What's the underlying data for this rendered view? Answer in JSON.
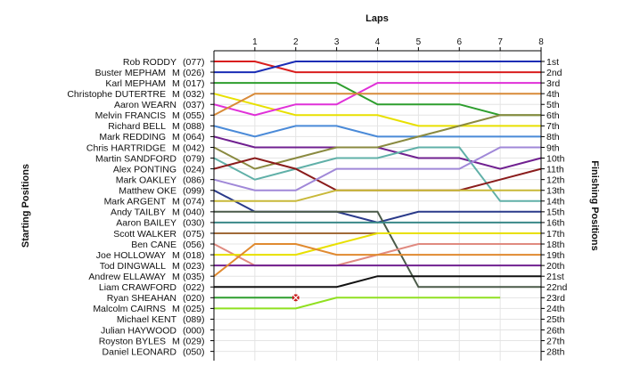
{
  "chart_data": {
    "type": "line",
    "title": "",
    "xlabel": "Laps",
    "ylabel_left": "Starting Positions",
    "ylabel_right": "Finishing Positions",
    "x_ticks": [
      "1",
      "2",
      "3",
      "4",
      "5",
      "6",
      "7",
      "8"
    ],
    "position_labels": [
      "1st",
      "2nd",
      "3rd",
      "4th",
      "5th",
      "6th",
      "7th",
      "8th",
      "9th",
      "10th",
      "11th",
      "12th",
      "13th",
      "14th",
      "15th",
      "16th",
      "17th",
      "18th",
      "19th",
      "20th",
      "21st",
      "22nd",
      "23rd",
      "24th",
      "25th",
      "26th",
      "27th",
      "28th"
    ],
    "grid": true,
    "drivers": [
      {
        "name": "Rob RODDY",
        "cls": "",
        "num": "(077)"
      },
      {
        "name": "Buster MEPHAM",
        "cls": "M",
        "num": "(026)"
      },
      {
        "name": "Karl MEPHAM",
        "cls": "M",
        "num": "(017)"
      },
      {
        "name": "Christophe DUTERTRE",
        "cls": "M",
        "num": "(032)"
      },
      {
        "name": "Aaron WEARN",
        "cls": "",
        "num": "(037)"
      },
      {
        "name": "Melvin FRANCIS",
        "cls": "M",
        "num": "(055)"
      },
      {
        "name": "Richard BELL",
        "cls": "M",
        "num": "(088)"
      },
      {
        "name": "Mark REDDING",
        "cls": "M",
        "num": "(064)"
      },
      {
        "name": "Chris HARTRIDGE",
        "cls": "M",
        "num": "(042)"
      },
      {
        "name": "Martin SANDFORD",
        "cls": "",
        "num": "(079)"
      },
      {
        "name": "Alex PONTING",
        "cls": "",
        "num": "(024)"
      },
      {
        "name": "Mark OAKLEY",
        "cls": "",
        "num": "(086)"
      },
      {
        "name": "Matthew OKE",
        "cls": "",
        "num": "(099)"
      },
      {
        "name": "Mark ARGENT",
        "cls": "M",
        "num": "(074)"
      },
      {
        "name": "Andy TAILBY",
        "cls": "M",
        "num": "(040)"
      },
      {
        "name": "Aaron BAILEY",
        "cls": "",
        "num": "(030)"
      },
      {
        "name": "Scott WALKER",
        "cls": "",
        "num": "(075)"
      },
      {
        "name": "Ben CANE",
        "cls": "",
        "num": "(056)"
      },
      {
        "name": "Joe HOLLOWAY",
        "cls": "M",
        "num": "(018)"
      },
      {
        "name": "Tod DINGWALL",
        "cls": "M",
        "num": "(023)"
      },
      {
        "name": "Andrew ELLAWAY",
        "cls": "M",
        "num": "(035)"
      },
      {
        "name": "Liam CRAWFORD",
        "cls": "",
        "num": "(022)"
      },
      {
        "name": "Ryan SHEAHAN",
        "cls": "",
        "num": "(020)"
      },
      {
        "name": "Malcolm CAIRNS",
        "cls": "M",
        "num": "(025)"
      },
      {
        "name": "Michael KENT",
        "cls": "",
        "num": "(089)"
      },
      {
        "name": "Julian HAYWOOD",
        "cls": "",
        "num": "(000)"
      },
      {
        "name": "Royston BYLES",
        "cls": "M",
        "num": "(029)"
      },
      {
        "name": "Daniel LEONARD",
        "cls": "",
        "num": "(050)"
      }
    ],
    "series": [
      {
        "start": 1,
        "color": "#d91e1e",
        "positions": [
          1,
          2,
          2,
          2,
          2,
          2,
          2,
          2
        ]
      },
      {
        "start": 2,
        "color": "#1a2db5",
        "positions": [
          2,
          1,
          1,
          1,
          1,
          1,
          1,
          1
        ]
      },
      {
        "start": 3,
        "color": "#2e9e2e",
        "positions": [
          3,
          3,
          3,
          5,
          5,
          5,
          6,
          6
        ]
      },
      {
        "start": 4,
        "color": "#e8e000",
        "positions": [
          5,
          6,
          6,
          6,
          7,
          7,
          7,
          7
        ]
      },
      {
        "start": 5,
        "color": "#e030d8",
        "positions": [
          6,
          5,
          5,
          3,
          3,
          3,
          3,
          3
        ]
      },
      {
        "start": 6,
        "color": "#d88a38",
        "positions": [
          4,
          4,
          4,
          4,
          4,
          4,
          4,
          4
        ]
      },
      {
        "start": 7,
        "color": "#4a8ad8",
        "positions": [
          8,
          7,
          7,
          8,
          8,
          8,
          8,
          8
        ]
      },
      {
        "start": 8,
        "color": "#702090",
        "positions": [
          9,
          9,
          9,
          9,
          10,
          10,
          11,
          10
        ]
      },
      {
        "start": 9,
        "color": "#8a8a40",
        "positions": [
          11,
          10,
          9,
          9,
          8,
          7,
          6,
          6
        ]
      },
      {
        "start": 10,
        "color": "#60b0a8",
        "positions": [
          12,
          11,
          10,
          10,
          9,
          9,
          14,
          14
        ]
      },
      {
        "start": 11,
        "color": "#8a1c1c",
        "positions": [
          10,
          11,
          13,
          13,
          13,
          13,
          12,
          11
        ]
      },
      {
        "start": 12,
        "color": "#a088d8",
        "positions": [
          13,
          13,
          11,
          11,
          11,
          11,
          9,
          9
        ]
      },
      {
        "start": 13,
        "color": "#2a3a8a",
        "positions": [
          15,
          15,
          15,
          16,
          15,
          15,
          15,
          15
        ]
      },
      {
        "start": 14,
        "color": "#c8b838",
        "positions": [
          14,
          14,
          13,
          13,
          13,
          13,
          13,
          13
        ]
      },
      {
        "start": 15,
        "color": "#4a5a48",
        "positions": [
          15,
          15,
          15,
          15,
          22,
          22,
          22,
          22
        ]
      },
      {
        "start": 16,
        "color": "#3a8888",
        "positions": [
          16,
          16,
          16,
          16,
          16,
          16,
          16,
          16
        ]
      },
      {
        "start": 17,
        "color": "#a06a38",
        "positions": [
          17,
          17,
          17,
          17,
          17,
          17,
          17,
          17
        ]
      },
      {
        "start": 18,
        "color": "#e08a80",
        "positions": [
          20,
          20,
          20,
          19,
          18,
          18,
          18,
          18
        ]
      },
      {
        "start": 19,
        "color": "#e8e000",
        "positions": [
          19,
          19,
          18,
          17,
          17,
          17,
          17,
          17
        ]
      },
      {
        "start": 20,
        "color": "#702090",
        "positions": [
          20,
          20,
          20,
          20,
          20,
          20,
          20,
          20
        ]
      },
      {
        "start": 21,
        "color": "#e08a30",
        "positions": [
          18,
          18,
          19,
          19,
          19,
          19,
          19,
          19
        ]
      },
      {
        "start": 22,
        "color": "#111111",
        "positions": [
          22,
          22,
          22,
          21,
          21,
          21,
          21,
          21
        ]
      },
      {
        "start": 23,
        "color": "#2e9e2e",
        "positions": [
          23,
          23
        ]
      },
      {
        "start": 24,
        "color": "#90e020",
        "positions": [
          24,
          24,
          23,
          23,
          23,
          23,
          23
        ]
      }
    ],
    "retired_marker": {
      "lap": 2,
      "position": 23,
      "color": "#c81e1e"
    }
  }
}
